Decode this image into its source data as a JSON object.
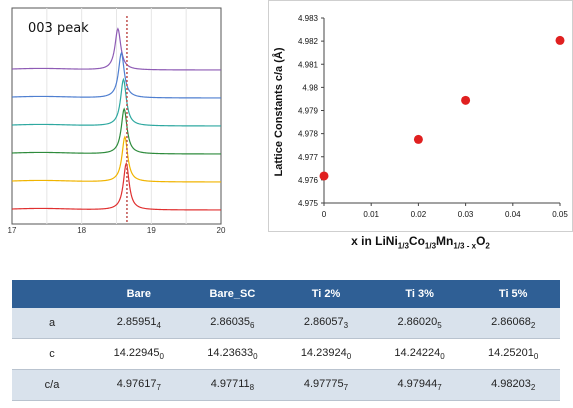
{
  "colors": {
    "table_header": "#2f5f95",
    "table_row_alt": "#d9e2ec",
    "scatter_marker": "#e02020",
    "peak_reference_line": "#c0504d"
  },
  "chart_data": [
    {
      "type": "line",
      "title": "003 peak",
      "xlim": [
        17,
        20
      ],
      "x_ticks": [
        "17",
        "18",
        "19",
        "20"
      ],
      "reference_line_x": 18.65,
      "series": [
        {
          "color": "#8e5bb5",
          "peak_x": 18.52,
          "peak_height": 0.55
        },
        {
          "color": "#4f7fd0",
          "peak_x": 18.57,
          "peak_height": 0.6
        },
        {
          "color": "#2ea8a0",
          "peak_x": 18.6,
          "peak_height": 0.62
        },
        {
          "color": "#2e8b3c",
          "peak_x": 18.61,
          "peak_height": 0.6
        },
        {
          "color": "#f0b400",
          "peak_x": 18.62,
          "peak_height": 0.6
        },
        {
          "color": "#e03030",
          "peak_x": 18.64,
          "peak_height": 0.62
        }
      ]
    },
    {
      "type": "scatter",
      "xlabel_parts": {
        "prefix": "x in LiNi",
        "sub1": "1/3",
        "mid1": "Co",
        "sub2": "1/3",
        "mid2": "Mn",
        "sub3": "1/3 - x",
        "mid3": "O",
        "sub4": "2"
      },
      "ylabel": "Lattice Constants c/a (Å)",
      "xlim": [
        0,
        0.05
      ],
      "ylim": [
        4.975,
        4.983
      ],
      "x_ticks": [
        "0",
        "0.01",
        "0.02",
        "0.03",
        "0.04",
        "0.05"
      ],
      "y_ticks": [
        "4.975",
        "4.976",
        "4.977",
        "4.978",
        "4.979",
        "4.98",
        "4.981",
        "4.982",
        "4.983"
      ],
      "x": [
        0,
        0.02,
        0.03,
        0.05
      ],
      "y": [
        4.97617,
        4.97775,
        4.97944,
        4.98203
      ]
    },
    {
      "type": "table",
      "columns": [
        "",
        "Bare",
        "Bare_SC",
        "Ti  2%",
        "Ti 3%",
        "Ti 5%"
      ],
      "rows": [
        {
          "label": "a",
          "cells": [
            {
              "v": "2.85951",
              "s": "4"
            },
            {
              "v": "2.86035",
              "s": "6"
            },
            {
              "v": "2.86057",
              "s": "3"
            },
            {
              "v": "2.86020",
              "s": "5"
            },
            {
              "v": "2.86068",
              "s": "2"
            }
          ]
        },
        {
          "label": "c",
          "cells": [
            {
              "v": "14.22945",
              "s": "0"
            },
            {
              "v": "14.23633",
              "s": "0"
            },
            {
              "v": "14.23924",
              "s": "0"
            },
            {
              "v": "14.24224",
              "s": "0"
            },
            {
              "v": "14.25201",
              "s": "0"
            }
          ]
        },
        {
          "label": "c/a",
          "cells": [
            {
              "v": "4.97617",
              "s": "7"
            },
            {
              "v": "4.97711",
              "s": "8"
            },
            {
              "v": "4.97775",
              "s": "7"
            },
            {
              "v": "4.97944",
              "s": "7"
            },
            {
              "v": "4.98203",
              "s": "2"
            }
          ]
        }
      ]
    }
  ]
}
